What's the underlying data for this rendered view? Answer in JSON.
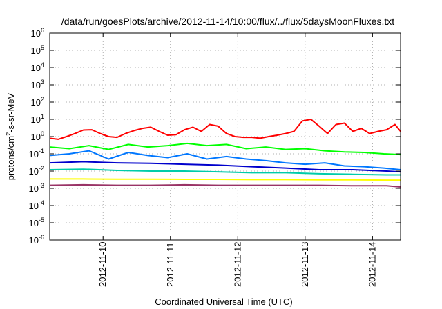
{
  "chart_data": {
    "type": "line",
    "title": "/data/run/goesPlots/archive/2012-11-14/10:00/flux/../flux/5daysMoonFluxes.txt",
    "xlabel": "Coordinated Universal Time (UTC)",
    "ylabel": {
      "base": "protons/cm",
      "sup": "2",
      "rest": "-s-sr-MeV"
    },
    "y_scale": "log",
    "ylim": [
      1e-06,
      1000000.0
    ],
    "xlim": [
      "2012-11-09T05:00",
      "2012-11-14T10:00"
    ],
    "y_ticks": [
      {
        "base": "10",
        "exp": "6"
      },
      {
        "base": "10",
        "exp": "5"
      },
      {
        "base": "10",
        "exp": "4"
      },
      {
        "base": "10",
        "exp": "3"
      },
      {
        "base": "10",
        "exp": "2"
      },
      {
        "base": "10",
        "exp": "1"
      },
      {
        "base": "10",
        "exp": "0"
      },
      {
        "base": "10",
        "exp": "-1"
      },
      {
        "base": "10",
        "exp": "-2"
      },
      {
        "base": "10",
        "exp": "-3"
      },
      {
        "base": "10",
        "exp": "-4"
      },
      {
        "base": "10",
        "exp": "-5"
      },
      {
        "base": "10",
        "exp": "-6"
      }
    ],
    "x_ticks": [
      "2012-11-10",
      "2012-11-11",
      "2012-11-12",
      "2012-11-13",
      "2012-11-14"
    ],
    "grid": true,
    "legend": "none",
    "series": [
      {
        "color": "#ff0000",
        "x": [
          "2012-11-09T05:00",
          "2012-11-09T08:00",
          "2012-11-09T11:00",
          "2012-11-09T14:00",
          "2012-11-09T17:00",
          "2012-11-09T20:00",
          "2012-11-09T23:00",
          "2012-11-10T02:00",
          "2012-11-10T05:00",
          "2012-11-10T08:00",
          "2012-11-10T11:00",
          "2012-11-10T14:00",
          "2012-11-10T17:00",
          "2012-11-10T20:00",
          "2012-11-10T23:00",
          "2012-11-11T02:00",
          "2012-11-11T05:00",
          "2012-11-11T08:00",
          "2012-11-11T11:00",
          "2012-11-11T14:00",
          "2012-11-11T17:00",
          "2012-11-11T20:00",
          "2012-11-11T23:00",
          "2012-11-12T02:00",
          "2012-11-12T05:00",
          "2012-11-12T08:00",
          "2012-11-12T11:00",
          "2012-11-12T14:00",
          "2012-11-12T17:00",
          "2012-11-12T20:00",
          "2012-11-12T23:00",
          "2012-11-13T02:00",
          "2012-11-13T05:00",
          "2012-11-13T08:00",
          "2012-11-13T11:00",
          "2012-11-13T14:00",
          "2012-11-13T17:00",
          "2012-11-13T20:00",
          "2012-11-13T23:00",
          "2012-11-14T02:00",
          "2012-11-14T05:00",
          "2012-11-14T08:00",
          "2012-11-14T10:00"
        ],
        "values": [
          0.8,
          0.7,
          1.0,
          1.5,
          2.4,
          2.5,
          1.5,
          1.0,
          0.9,
          1.5,
          2.2,
          3.0,
          3.5,
          2.0,
          1.2,
          1.3,
          2.5,
          3.5,
          2.0,
          5.0,
          4.0,
          1.5,
          1.0,
          0.9,
          0.9,
          0.8,
          1.0,
          1.2,
          1.5,
          2.0,
          8.0,
          10.0,
          4.0,
          1.5,
          5.0,
          6.0,
          2.0,
          3.0,
          1.5,
          2.0,
          2.5,
          5.0,
          2.0
        ]
      },
      {
        "color": "#00ff00",
        "x": [
          "2012-11-09T05:00",
          "2012-11-09T12:00",
          "2012-11-09T19:00",
          "2012-11-10T02:00",
          "2012-11-10T09:00",
          "2012-11-10T16:00",
          "2012-11-10T23:00",
          "2012-11-11T06:00",
          "2012-11-11T13:00",
          "2012-11-11T20:00",
          "2012-11-12T03:00",
          "2012-11-12T10:00",
          "2012-11-12T17:00",
          "2012-11-13T00:00",
          "2012-11-13T07:00",
          "2012-11-13T14:00",
          "2012-11-13T21:00",
          "2012-11-14T04:00",
          "2012-11-14T10:00"
        ],
        "values": [
          0.25,
          0.2,
          0.3,
          0.18,
          0.35,
          0.25,
          0.3,
          0.4,
          0.3,
          0.35,
          0.2,
          0.25,
          0.18,
          0.2,
          0.15,
          0.13,
          0.12,
          0.1,
          0.09
        ]
      },
      {
        "color": "#0077ff",
        "x": [
          "2012-11-09T05:00",
          "2012-11-09T12:00",
          "2012-11-09T19:00",
          "2012-11-10T02:00",
          "2012-11-10T09:00",
          "2012-11-10T16:00",
          "2012-11-10T23:00",
          "2012-11-11T06:00",
          "2012-11-11T13:00",
          "2012-11-11T20:00",
          "2012-11-12T03:00",
          "2012-11-12T10:00",
          "2012-11-12T17:00",
          "2012-11-13T00:00",
          "2012-11-13T07:00",
          "2012-11-13T14:00",
          "2012-11-13T21:00",
          "2012-11-14T04:00",
          "2012-11-14T10:00"
        ],
        "values": [
          0.08,
          0.1,
          0.15,
          0.05,
          0.12,
          0.08,
          0.06,
          0.1,
          0.05,
          0.07,
          0.05,
          0.04,
          0.03,
          0.025,
          0.03,
          0.02,
          0.018,
          0.015,
          0.012
        ]
      },
      {
        "color": "#0000cc",
        "x": [
          "2012-11-09T05:00",
          "2012-11-09T17:00",
          "2012-11-10T05:00",
          "2012-11-10T17:00",
          "2012-11-11T05:00",
          "2012-11-11T17:00",
          "2012-11-12T05:00",
          "2012-11-12T17:00",
          "2012-11-13T05:00",
          "2012-11-13T17:00",
          "2012-11-14T05:00",
          "2012-11-14T10:00"
        ],
        "values": [
          0.03,
          0.035,
          0.03,
          0.028,
          0.025,
          0.022,
          0.018,
          0.015,
          0.012,
          0.012,
          0.01,
          0.009
        ]
      },
      {
        "color": "#00ccaa",
        "x": [
          "2012-11-09T05:00",
          "2012-11-09T17:00",
          "2012-11-10T05:00",
          "2012-11-10T17:00",
          "2012-11-11T05:00",
          "2012-11-11T17:00",
          "2012-11-12T05:00",
          "2012-11-12T17:00",
          "2012-11-13T05:00",
          "2012-11-13T17:00",
          "2012-11-14T05:00",
          "2012-11-14T10:00"
        ],
        "values": [
          0.012,
          0.013,
          0.011,
          0.01,
          0.01,
          0.009,
          0.008,
          0.008,
          0.007,
          0.0065,
          0.006,
          0.006
        ]
      },
      {
        "color": "#ffff00",
        "x": [
          "2012-11-09T05:00",
          "2012-11-09T17:00",
          "2012-11-10T05:00",
          "2012-11-10T17:00",
          "2012-11-11T05:00",
          "2012-11-11T17:00",
          "2012-11-12T05:00",
          "2012-11-12T17:00",
          "2012-11-13T05:00",
          "2012-11-13T17:00",
          "2012-11-14T05:00",
          "2012-11-14T10:00"
        ],
        "values": [
          0.0035,
          0.0035,
          0.0034,
          0.0034,
          0.0033,
          0.0033,
          0.0032,
          0.0032,
          0.0031,
          0.0031,
          0.003,
          0.003
        ]
      },
      {
        "color": "#993366",
        "x": [
          "2012-11-09T05:00",
          "2012-11-09T17:00",
          "2012-11-10T05:00",
          "2012-11-10T17:00",
          "2012-11-11T05:00",
          "2012-11-11T17:00",
          "2012-11-12T05:00",
          "2012-11-12T17:00",
          "2012-11-13T05:00",
          "2012-11-13T17:00",
          "2012-11-14T05:00",
          "2012-11-14T10:00"
        ],
        "values": [
          0.0015,
          0.0016,
          0.0015,
          0.0015,
          0.0016,
          0.0015,
          0.0015,
          0.0015,
          0.0015,
          0.0014,
          0.0014,
          0.0012
        ]
      }
    ]
  }
}
